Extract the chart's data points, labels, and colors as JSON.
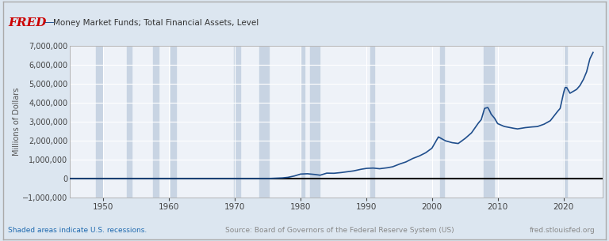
{
  "title": "Money Market Funds; Total Financial Assets, Level",
  "ylabel": "Millions of Dollars",
  "line_color": "#1f4e8c",
  "line_width": 1.2,
  "bg_color": "#dce6f0",
  "plot_bg_color": "#eef2f8",
  "grid_color": "#ffffff",
  "zero_line_color": "#000000",
  "ylim": [
    -1000000,
    7000000
  ],
  "yticks": [
    -1000000,
    0,
    1000000,
    2000000,
    3000000,
    4000000,
    5000000,
    6000000,
    7000000
  ],
  "xlim_start": 1945,
  "xlim_end": 2026,
  "xticks": [
    1950,
    1960,
    1970,
    1980,
    1990,
    2000,
    2010,
    2020
  ],
  "recession_bands": [
    [
      1948.9,
      1949.9
    ],
    [
      1953.6,
      1954.4
    ],
    [
      1957.6,
      1958.5
    ],
    [
      1960.3,
      1961.1
    ],
    [
      1969.9,
      1970.9
    ],
    [
      1973.8,
      1975.2
    ],
    [
      1980.0,
      1980.6
    ],
    [
      1981.5,
      1982.9
    ],
    [
      1990.6,
      1991.2
    ],
    [
      2001.2,
      2001.9
    ],
    [
      2007.9,
      2009.5
    ],
    [
      2020.1,
      2020.5
    ]
  ],
  "recession_color": "#c8d4e3",
  "footer_left": "Shaded areas indicate U.S. recessions.",
  "footer_center": "Source: Board of Governors of the Federal Reserve System (US)",
  "footer_right": "fred.stlouisfed.org",
  "footer_color_left": "#1f6ab0",
  "footer_color_other": "#888888",
  "key_years": [
    1945,
    1974,
    1975,
    1977,
    1978,
    1979,
    1980,
    1981,
    1982,
    1983,
    1984,
    1985,
    1986,
    1987,
    1988,
    1989,
    1990,
    1991,
    1992,
    1993,
    1994,
    1995,
    1996,
    1997,
    1998,
    1999,
    2000,
    2001.0,
    2001.5,
    2002,
    2003,
    2004,
    2005,
    2006,
    2007,
    2007.5,
    2008.0,
    2008.5,
    2008.75,
    2009.0,
    2009.25,
    2009.5,
    2010,
    2011,
    2012,
    2013,
    2014,
    2015,
    2016,
    2017,
    2018,
    2019,
    2019.5,
    2020.0,
    2020.25,
    2020.5,
    2021,
    2022,
    2022.5,
    2023,
    2023.5,
    2024.0,
    2024.5
  ],
  "key_values": [
    0,
    0,
    3600,
    30000,
    60000,
    130000,
    240000,
    260000,
    230000,
    180000,
    290000,
    280000,
    310000,
    360000,
    400000,
    480000,
    540000,
    560000,
    520000,
    560000,
    620000,
    760000,
    870000,
    1050000,
    1180000,
    1350000,
    1600000,
    2200000,
    2100000,
    2000000,
    1900000,
    1850000,
    2100000,
    2400000,
    2900000,
    3100000,
    3700000,
    3750000,
    3600000,
    3400000,
    3300000,
    3200000,
    2900000,
    2750000,
    2680000,
    2620000,
    2680000,
    2720000,
    2740000,
    2860000,
    3050000,
    3500000,
    3700000,
    4500000,
    4800000,
    4800000,
    4500000,
    4700000,
    4900000,
    5200000,
    5600000,
    6300000,
    6650000
  ]
}
